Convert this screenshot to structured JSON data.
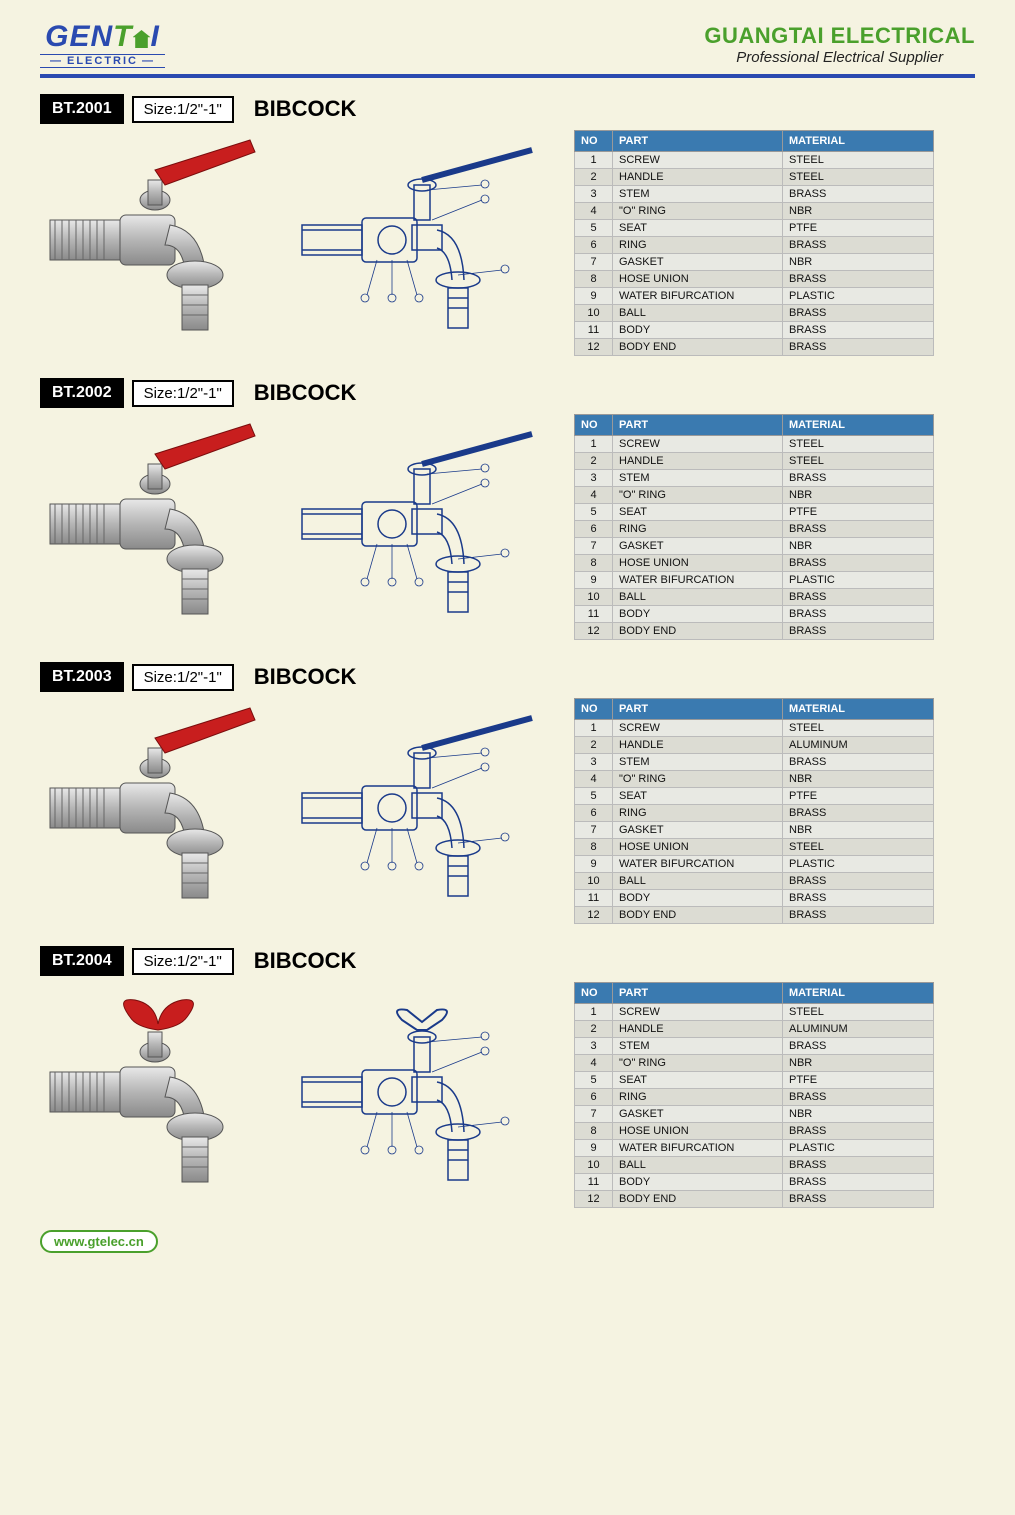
{
  "header": {
    "logo_text_1": "GEN",
    "logo_text_2": "T",
    "logo_text_3": "I",
    "logo_sub": "ELECTRIC",
    "company": "GUANGTAI ELECTRICAL",
    "tagline": "Professional Electrical Supplier"
  },
  "colors": {
    "brand_blue": "#2a4ab0",
    "brand_green": "#4aa02c",
    "bg": "#f5f3e1",
    "table_header": "#3a7ab0",
    "handle_red": "#c81e1e"
  },
  "table_columns": [
    "NO",
    "PART",
    "MATERIAL"
  ],
  "products": [
    {
      "code": "BT.2001",
      "size": "Size:1/2\"-1\"",
      "title": "BIBCOCK",
      "handle_type": "lever",
      "parts": [
        {
          "no": "1",
          "part": "SCREW",
          "material": "STEEL"
        },
        {
          "no": "2",
          "part": "HANDLE",
          "material": "STEEL"
        },
        {
          "no": "3",
          "part": "STEM",
          "material": "BRASS"
        },
        {
          "no": "4",
          "part": "\"O\" RING",
          "material": "NBR"
        },
        {
          "no": "5",
          "part": "SEAT",
          "material": "PTFE"
        },
        {
          "no": "6",
          "part": "RING",
          "material": "BRASS"
        },
        {
          "no": "7",
          "part": "GASKET",
          "material": "NBR"
        },
        {
          "no": "8",
          "part": "HOSE UNION",
          "material": "BRASS"
        },
        {
          "no": "9",
          "part": "WATER BIFURCATION",
          "material": "PLASTIC"
        },
        {
          "no": "10",
          "part": "BALL",
          "material": "BRASS"
        },
        {
          "no": "11",
          "part": "BODY",
          "material": "BRASS"
        },
        {
          "no": "12",
          "part": "BODY END",
          "material": "BRASS"
        }
      ]
    },
    {
      "code": "BT.2002",
      "size": "Size:1/2\"-1\"",
      "title": "BIBCOCK",
      "handle_type": "lever",
      "parts": [
        {
          "no": "1",
          "part": "SCREW",
          "material": "STEEL"
        },
        {
          "no": "2",
          "part": "HANDLE",
          "material": "STEEL"
        },
        {
          "no": "3",
          "part": "STEM",
          "material": "BRASS"
        },
        {
          "no": "4",
          "part": "\"O\" RING",
          "material": "NBR"
        },
        {
          "no": "5",
          "part": "SEAT",
          "material": "PTFE"
        },
        {
          "no": "6",
          "part": "RING",
          "material": "BRASS"
        },
        {
          "no": "7",
          "part": "GASKET",
          "material": "NBR"
        },
        {
          "no": "8",
          "part": "HOSE UNION",
          "material": "BRASS"
        },
        {
          "no": "9",
          "part": "WATER BIFURCATION",
          "material": "PLASTIC"
        },
        {
          "no": "10",
          "part": "BALL",
          "material": "BRASS"
        },
        {
          "no": "11",
          "part": "BODY",
          "material": "BRASS"
        },
        {
          "no": "12",
          "part": "BODY END",
          "material": "BRASS"
        }
      ]
    },
    {
      "code": "BT.2003",
      "size": "Size:1/2\"-1\"",
      "title": "BIBCOCK",
      "handle_type": "lever",
      "parts": [
        {
          "no": "1",
          "part": "SCREW",
          "material": "STEEL"
        },
        {
          "no": "2",
          "part": "HANDLE",
          "material": "ALUMINUM"
        },
        {
          "no": "3",
          "part": "STEM",
          "material": "BRASS"
        },
        {
          "no": "4",
          "part": "\"O\" RING",
          "material": "NBR"
        },
        {
          "no": "5",
          "part": "SEAT",
          "material": "PTFE"
        },
        {
          "no": "6",
          "part": "RING",
          "material": "BRASS"
        },
        {
          "no": "7",
          "part": "GASKET",
          "material": "NBR"
        },
        {
          "no": "8",
          "part": "HOSE UNION",
          "material": "STEEL"
        },
        {
          "no": "9",
          "part": "WATER BIFURCATION",
          "material": "PLASTIC"
        },
        {
          "no": "10",
          "part": "BALL",
          "material": "BRASS"
        },
        {
          "no": "11",
          "part": "BODY",
          "material": "BRASS"
        },
        {
          "no": "12",
          "part": "BODY END",
          "material": "BRASS"
        }
      ]
    },
    {
      "code": "BT.2004",
      "size": "Size:1/2\"-1\"",
      "title": "BIBCOCK",
      "handle_type": "butterfly",
      "parts": [
        {
          "no": "1",
          "part": "SCREW",
          "material": "STEEL"
        },
        {
          "no": "2",
          "part": "HANDLE",
          "material": "ALUMINUM"
        },
        {
          "no": "3",
          "part": "STEM",
          "material": "BRASS"
        },
        {
          "no": "4",
          "part": "\"O\" RING",
          "material": "NBR"
        },
        {
          "no": "5",
          "part": "SEAT",
          "material": "PTFE"
        },
        {
          "no": "6",
          "part": "RING",
          "material": "BRASS"
        },
        {
          "no": "7",
          "part": "GASKET",
          "material": "NBR"
        },
        {
          "no": "8",
          "part": "HOSE UNION",
          "material": "BRASS"
        },
        {
          "no": "9",
          "part": "WATER BIFURCATION",
          "material": "PLASTIC"
        },
        {
          "no": "10",
          "part": "BALL",
          "material": "BRASS"
        },
        {
          "no": "11",
          "part": "BODY",
          "material": "BRASS"
        },
        {
          "no": "12",
          "part": "BODY END",
          "material": "BRASS"
        }
      ]
    }
  ],
  "footer": {
    "url": "www.gtelec.cn"
  }
}
